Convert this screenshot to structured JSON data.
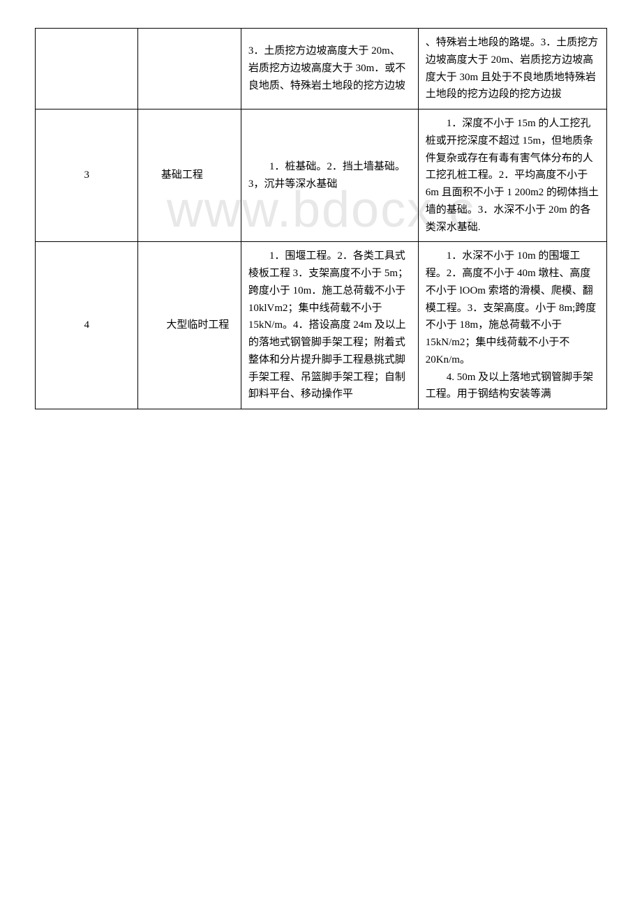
{
  "watermark": "www.bdocx.c",
  "table": {
    "rows": [
      {
        "col1": "",
        "col2": "",
        "col3": "3．土质挖方边坡高度大于 20m、岩质挖方边坡高度大于 30m．或不良地质、特殊岩土地段的挖方边坡",
        "col4": "、特殊岩土地段的路堤。3．土质挖方边坡高度大于 20m、岩质挖方边坡高度大于 30m 且处于不良地质地特殊岩土地段的挖方边段的挖方边拔"
      },
      {
        "col1": "3",
        "col2": "基础工程",
        "col3": "　　1．桩基础。2．挡土墙基础。3，沉井等深水基础",
        "col4": "　　1．深度不小于 15m 的人工挖孔桩或开挖深度不超过 15m，但地质条件复杂或存在有毒有害气体分布的人工挖孔桩工程。2．平均高度不小于 6m 且面积不小于 1 200m2 的砌体挡土墙的基础。3．水深不小于 20m 的各类深水基础."
      },
      {
        "col1": "4",
        "col2": "　　大型临时工程",
        "col3": "　　1．围堰工程。2．各类工具式棱板工程 3．支架高度不小于 5m；跨度小于 10m．施工总荷载不小于 10klVm2；集中线荷载不小于 15kN/m。4．搭设高度 24m 及以上的落地式钢管脚手架工程；附着式整体和分片提升脚手工程悬挑式脚手架工程、吊篮脚手架工程；自制卸料平台、移动操作平",
        "col4_parts": [
          "　　1．水深不小于 10m 的围堰工程。2．高度不小于 40m 墩柱、高度不小于 lOOm 索塔的滑模、爬模、翻模工程。3．支架高度。小于 8m;跨度不小于 18m，施总荷载不小于 15kN/m2；集中线荷载不小于不 20Kn/m。",
          "　　4. 50m 及以上落地式钢管脚手架工程。用于钢结构安装等满"
        ]
      }
    ]
  },
  "styles": {
    "background_color": "#ffffff",
    "border_color": "#000000",
    "text_color": "#000000",
    "watermark_color": "#e8e8e8",
    "font_size": 15,
    "line_height": 1.65
  }
}
